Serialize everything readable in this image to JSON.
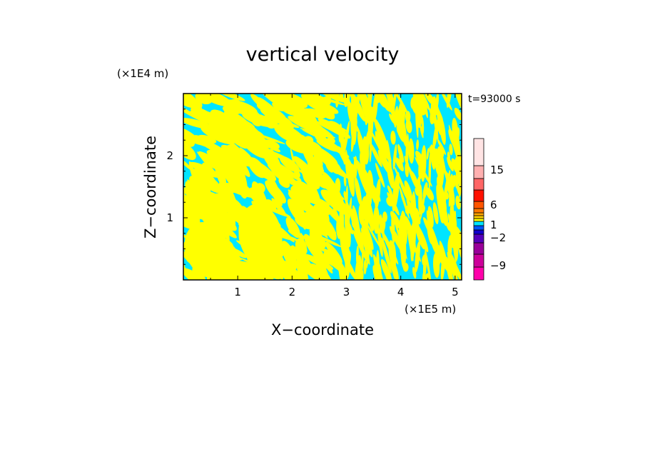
{
  "chart_data": {
    "type": "heatmap",
    "title": "vertical velocity",
    "xlabel": "X−coordinate",
    "ylabel": "Z−coordinate",
    "x_unit": "(×1E5 m)",
    "y_unit": "(×1E4 m)",
    "time_label": "t=93000 s",
    "xlim": [
      0,
      5.12
    ],
    "ylim": [
      0,
      3.0
    ],
    "x_ticks": [
      "1",
      "2",
      "3",
      "4",
      "5"
    ],
    "x_tick_values": [
      1,
      2,
      3,
      4,
      5
    ],
    "y_ticks": [
      "1",
      "2"
    ],
    "y_tick_values": [
      1,
      2
    ],
    "colorbar": {
      "levels": [
        {
          "color": "#ff00aa"
        },
        {
          "color": "#cc0099"
        },
        {
          "color": "#990099"
        },
        {
          "color": "#5500bb"
        },
        {
          "color": "#1100cc"
        },
        {
          "color": "#0055ff"
        },
        {
          "color": "#00e5ff"
        },
        {
          "color": "#ffff00"
        },
        {
          "color": "#ffd000"
        },
        {
          "color": "#ffa500"
        },
        {
          "color": "#ff7700"
        },
        {
          "color": "#ff5500"
        },
        {
          "color": "#ff1100"
        },
        {
          "color": "#ff6666"
        },
        {
          "color": "#ffb0b0"
        },
        {
          "color": "#ffe4e4"
        }
      ],
      "labels": [
        "−9",
        "−2",
        "1",
        "6",
        "15"
      ]
    },
    "field_colors": [
      "#00e5ff",
      "#ffff00"
    ],
    "legend_placement": "right",
    "grid": false
  }
}
